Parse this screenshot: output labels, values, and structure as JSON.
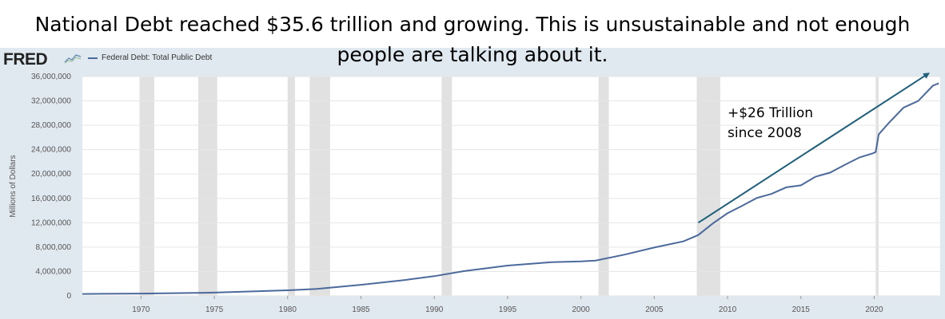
{
  "headline": {
    "line1": "National Debt reached $35.6 trillion and growing.  This is unsustainable and not enough",
    "line2": "people are talking about it."
  },
  "logo": {
    "text": "FRED",
    "icon": "fred-chart-icon"
  },
  "colors": {
    "series": "#4b6a9b",
    "recession": "#e1e1e1",
    "arrow": "#1f5f7a",
    "panel": "#e1e9f0",
    "plot_bg": "#ffffff",
    "grid": "#e6e6e6"
  },
  "chart_data": {
    "type": "line",
    "title": "",
    "xlabel": "",
    "ylabel": "Millions of Dollars",
    "xlim": [
      1966,
      2024.5
    ],
    "ylim": [
      0,
      36000000
    ],
    "x_ticks": [
      1970,
      1975,
      1980,
      1985,
      1990,
      1995,
      2000,
      2005,
      2010,
      2015,
      2020
    ],
    "y_ticks": [
      0,
      4000000,
      8000000,
      12000000,
      16000000,
      20000000,
      24000000,
      28000000,
      32000000,
      36000000
    ],
    "y_tick_labels": [
      "0",
      "4,000,000",
      "8,000,000",
      "12,000,000",
      "16,000,000",
      "20,000,000",
      "24,000,000",
      "28,000,000",
      "32,000,000",
      "36,000,000"
    ],
    "grid": true,
    "legend_position": "top-left",
    "series": [
      {
        "name": "Federal Debt: Total Public Debt",
        "points": [
          [
            1966,
            320000
          ],
          [
            1970,
            380000
          ],
          [
            1975,
            540000
          ],
          [
            1980,
            910000
          ],
          [
            1982,
            1140000
          ],
          [
            1985,
            1820000
          ],
          [
            1988,
            2600000
          ],
          [
            1990,
            3230000
          ],
          [
            1992,
            4060000
          ],
          [
            1995,
            4970000
          ],
          [
            1998,
            5520000
          ],
          [
            2000,
            5670000
          ],
          [
            2001,
            5800000
          ],
          [
            2003,
            6780000
          ],
          [
            2005,
            7930000
          ],
          [
            2007,
            8950000
          ],
          [
            2008,
            9990000
          ],
          [
            2009,
            11900000
          ],
          [
            2010,
            13560000
          ],
          [
            2011,
            14790000
          ],
          [
            2012,
            16070000
          ],
          [
            2013,
            16740000
          ],
          [
            2014,
            17820000
          ],
          [
            2015,
            18150000
          ],
          [
            2016,
            19570000
          ],
          [
            2017,
            20240000
          ],
          [
            2018,
            21520000
          ],
          [
            2019,
            22720000
          ],
          [
            2019.9,
            23400000
          ],
          [
            2020.1,
            23600000
          ],
          [
            2020.3,
            26500000
          ],
          [
            2021,
            28400000
          ],
          [
            2022,
            30900000
          ],
          [
            2023,
            32000000
          ],
          [
            2024,
            34500000
          ],
          [
            2024.4,
            34900000
          ]
        ]
      }
    ],
    "recessions": [
      [
        1969.9,
        1970.9
      ],
      [
        1973.9,
        1975.2
      ],
      [
        1980.0,
        1980.5
      ],
      [
        1981.5,
        1982.9
      ],
      [
        1990.5,
        1991.2
      ],
      [
        2001.2,
        2001.9
      ],
      [
        2007.9,
        2009.5
      ],
      [
        2020.1,
        2020.3
      ]
    ],
    "annotation": {
      "line1": "+$26 Trillion",
      "line2": "since 2008",
      "arrow_from": [
        2008,
        12000000
      ],
      "arrow_to": [
        2023.7,
        36500000
      ]
    }
  }
}
